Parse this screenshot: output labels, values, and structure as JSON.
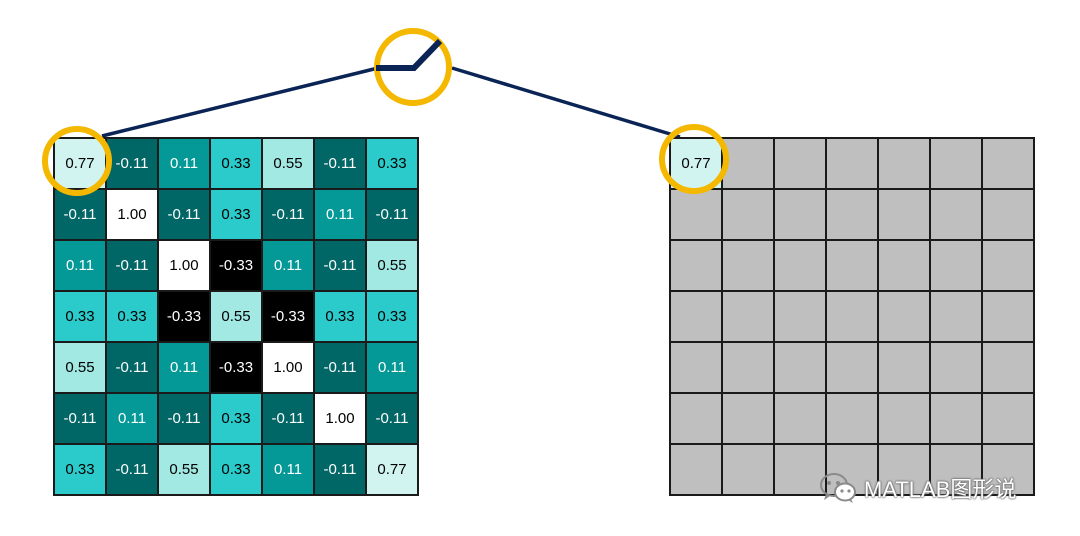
{
  "colors": {
    "v_0_77": "#d2f4f1",
    "v_0_55": "#a2e8e3",
    "v_0_33": "#2ccbcb",
    "v_0_11": "#049896",
    "v_neg_0_11": "#006666",
    "v_1_00": "#ffffff",
    "v_neg_0_33": "#000000",
    "empty": "#bfbfbf",
    "highlight_ring": "#f5b800",
    "connector": "#0a2455"
  },
  "left_grid": {
    "rows": [
      [
        "0.77",
        "-0.11",
        "0.11",
        "0.33",
        "0.55",
        "-0.11",
        "0.33"
      ],
      [
        "-0.11",
        "1.00",
        "-0.11",
        "0.33",
        "-0.11",
        "0.11",
        "-0.11"
      ],
      [
        "0.11",
        "-0.11",
        "1.00",
        "-0.33",
        "0.11",
        "-0.11",
        "0.55"
      ],
      [
        "0.33",
        "0.33",
        "-0.33",
        "0.55",
        "-0.33",
        "0.33",
        "0.33"
      ],
      [
        "0.55",
        "-0.11",
        "0.11",
        "-0.33",
        "1.00",
        "-0.11",
        "0.11"
      ],
      [
        "-0.11",
        "0.11",
        "-0.11",
        "0.33",
        "-0.11",
        "1.00",
        "-0.11"
      ],
      [
        "0.33",
        "-0.11",
        "0.55",
        "0.33",
        "0.11",
        "-0.11",
        "0.77"
      ]
    ]
  },
  "right_grid": {
    "rows": [
      [
        "0.77",
        "",
        "",
        "",
        "",
        "",
        ""
      ],
      [
        "",
        "",
        "",
        "",
        "",
        "",
        ""
      ],
      [
        "",
        "",
        "",
        "",
        "",
        "",
        ""
      ],
      [
        "",
        "",
        "",
        "",
        "",
        "",
        ""
      ],
      [
        "",
        "",
        "",
        "",
        "",
        "",
        ""
      ],
      [
        "",
        "",
        "",
        "",
        "",
        "",
        ""
      ],
      [
        "",
        "",
        "",
        "",
        "",
        "",
        ""
      ]
    ]
  },
  "icons": {
    "activation": "relu-function-icon",
    "watermark": "wechat-icon"
  },
  "watermark": {
    "text": "MATLAB图形说"
  }
}
